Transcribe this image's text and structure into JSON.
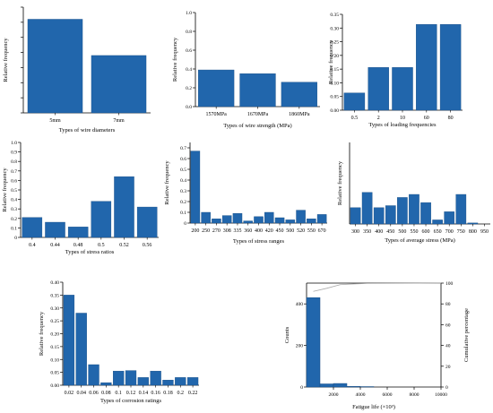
{
  "colors": {
    "bar": "#2166ac",
    "bar_edge": "#1a4f86",
    "axis": "#000000",
    "line": "#aaaaaa"
  },
  "chart_data": [
    {
      "id": "wire-diameter",
      "type": "bar",
      "title": "",
      "xlabel": "Types of wire diameters",
      "ylabel": "Relative frequency",
      "categories": [
        "5mm",
        "7mm"
      ],
      "values": [
        0.62,
        0.38
      ],
      "ylim": [
        0,
        0.7
      ],
      "yticks": [
        0.0,
        0.1,
        0.2,
        0.3,
        0.4,
        0.5,
        0.6,
        0.7
      ],
      "ytick_labels": [],
      "grid": false
    },
    {
      "id": "wire-strength",
      "type": "bar",
      "title": "",
      "xlabel": "Types of wire strength (MPa)",
      "ylabel": "Relative frequency",
      "categories": [
        "1570MPa",
        "1670MPa",
        "1860MPa"
      ],
      "values": [
        0.39,
        0.35,
        0.26
      ],
      "ylim": [
        0,
        1.0
      ],
      "yticks": [
        0.0,
        0.2,
        0.4,
        0.6,
        0.8,
        1.0
      ],
      "ytick_labels": [
        "0.0",
        "0.2",
        "0.4",
        "0.6",
        "0.8",
        "1.0"
      ],
      "grid": false
    },
    {
      "id": "loading-frequency",
      "type": "bar",
      "title": "",
      "xlabel": "Types of loading frequencies",
      "ylabel": "Relative frequency",
      "categories": [
        "0.5",
        "2",
        "10",
        "60",
        "80"
      ],
      "values": [
        0.063,
        0.156,
        0.156,
        0.313,
        0.313
      ],
      "ylim": [
        0,
        0.35
      ],
      "yticks": [
        0.0,
        0.05,
        0.1,
        0.15,
        0.2,
        0.25,
        0.3,
        0.35
      ],
      "ytick_labels": [
        "0.00",
        "0.05",
        "0.10",
        "0.15",
        "0.20",
        "0.25",
        "0.30",
        "0.35"
      ],
      "grid": false
    },
    {
      "id": "stress-ratio",
      "type": "bar",
      "title": "",
      "xlabel": "Types of stress ratios",
      "ylabel": "Relative frequency",
      "categories": [
        "0.4",
        "0.44",
        "0.48",
        "0.5",
        "0.52",
        "0.56"
      ],
      "values": [
        0.21,
        0.16,
        0.11,
        0.38,
        0.64,
        0.32
      ],
      "ylim": [
        0,
        1.0
      ],
      "yticks": [
        0.0,
        0.1,
        0.2,
        0.3,
        0.4,
        0.5,
        0.6,
        0.7,
        0.8,
        0.9,
        1.0
      ],
      "ytick_labels": [
        "0",
        "0.1",
        "0.2",
        "0.3",
        "0.4",
        "0.5",
        "0.6",
        "0.7",
        "0.8",
        "0.9",
        "1.0"
      ],
      "grid": false
    },
    {
      "id": "stress-range",
      "type": "bar",
      "title": "",
      "xlabel": "Types of stress ranges",
      "ylabel": "Relative frequency",
      "categories": [
        "200",
        "250",
        "270",
        "308",
        "335",
        "360",
        "400",
        "420",
        "450",
        "500",
        "520",
        "550",
        "670"
      ],
      "values": [
        0.67,
        0.1,
        0.04,
        0.07,
        0.09,
        0.02,
        0.06,
        0.1,
        0.05,
        0.03,
        0.12,
        0.04,
        0.08
      ],
      "ylim": [
        0,
        0.75
      ],
      "yticks": [
        0.0,
        0.1,
        0.2,
        0.3,
        0.4,
        0.5,
        0.6,
        0.7
      ],
      "ytick_labels": [
        "0",
        "0.1",
        "0.2",
        "0.3",
        "0.4",
        "0.5",
        "0.6",
        "0.7"
      ],
      "grid": false
    },
    {
      "id": "average-stress",
      "type": "bar",
      "title": "",
      "xlabel": "Types of average stress (MPa)",
      "ylabel": "Relative frequency",
      "categories": [
        "300",
        "350",
        "400",
        "450",
        "500",
        "550",
        "600",
        "650",
        "700",
        "750",
        "800",
        "950"
      ],
      "values": [
        0.08,
        0.155,
        0.08,
        0.09,
        0.13,
        0.145,
        0.105,
        0.02,
        0.06,
        0.145,
        0.005,
        0.0
      ],
      "ylim": [
        0,
        0.4
      ],
      "yticks": [],
      "ytick_labels": [],
      "grid": false
    },
    {
      "id": "corrosion-rating",
      "type": "bar",
      "title": "",
      "xlabel": "Types of corrosion ratings",
      "ylabel": "Relative frequency",
      "categories": [
        "0.02",
        "0.04",
        "0.06",
        "0.08",
        "0.1",
        "0.12",
        "0.14",
        "0.16",
        "0.18",
        "0.2",
        "0.22"
      ],
      "values": [
        0.35,
        0.28,
        0.08,
        0.01,
        0.055,
        0.057,
        0.03,
        0.055,
        0.02,
        0.03,
        0.03
      ],
      "ylim": [
        0,
        0.4
      ],
      "yticks": [
        0.0,
        0.05,
        0.1,
        0.15,
        0.2,
        0.25,
        0.3,
        0.35,
        0.4
      ],
      "ytick_labels": [
        "0.00",
        "0.05",
        "0.10",
        "0.15",
        "0.20",
        "0.25",
        "0.30",
        "0.35",
        "0.40"
      ],
      "grid": false
    },
    {
      "id": "fatigue-life",
      "type": "bar",
      "subtype": "histogram",
      "title": "",
      "xlabel": "Fatigue life (×10³)",
      "ylabel": "Counts",
      "y2label": "Cumulative percentage",
      "bins": [
        [
          0,
          1000,
          430
        ],
        [
          1000,
          2000,
          15
        ],
        [
          2000,
          3000,
          17
        ],
        [
          3000,
          4000,
          3
        ],
        [
          4000,
          5000,
          2
        ],
        [
          5000,
          10000,
          0
        ]
      ],
      "xlim": [
        0,
        10000
      ],
      "xticks": [
        2000,
        4000,
        6000,
        8000,
        10000
      ],
      "xtick_labels": [
        "2000",
        "4000",
        "6000",
        "8000",
        "10000"
      ],
      "ylim": [
        0,
        500
      ],
      "yticks": [
        0,
        200,
        400
      ],
      "ytick_labels": [
        "0",
        "200",
        "400"
      ],
      "y2lim": [
        0,
        100
      ],
      "y2ticks": [
        0,
        20,
        40,
        60,
        80,
        100
      ],
      "y2tick_labels": [
        "0",
        "20",
        "40",
        "60",
        "80",
        "100"
      ],
      "cumulative": {
        "x": [
          500,
          1500,
          2500,
          3500,
          4500,
          10000
        ],
        "y": [
          92,
          95,
          98.5,
          99.2,
          99.7,
          100
        ]
      },
      "grid": false
    }
  ]
}
